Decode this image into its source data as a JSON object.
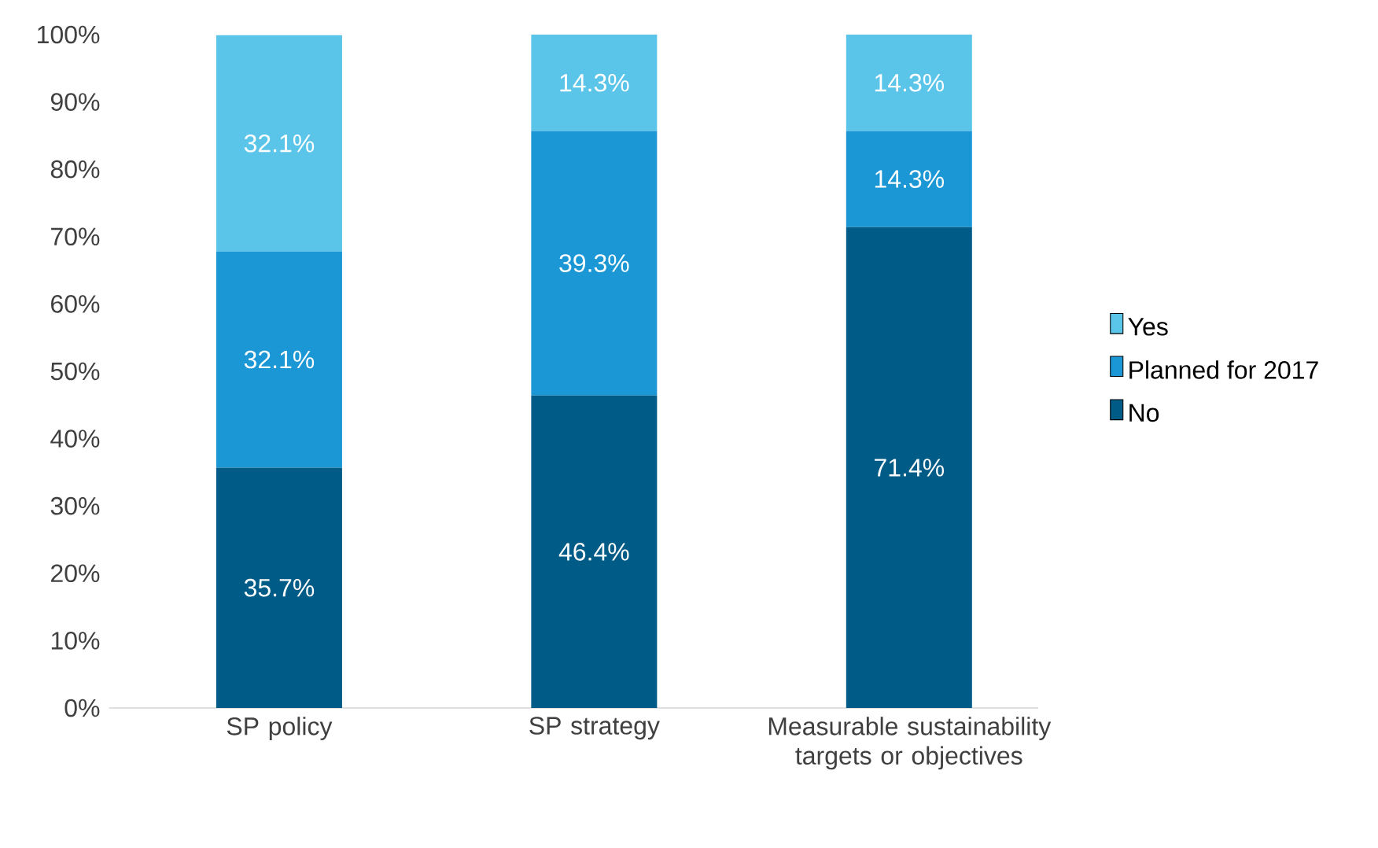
{
  "chart_data": {
    "type": "bar",
    "stacked": true,
    "categories": [
      "SP policy",
      "SP strategy",
      "Measurable sustainability targets or objectives"
    ],
    "series": [
      {
        "name": "No",
        "color": "#005b86",
        "values": [
          35.7,
          46.4,
          71.4
        ],
        "value_labels": [
          "35.7%",
          "46.4%",
          "71.4%"
        ]
      },
      {
        "name": "Planned for 2017",
        "color": "#1b97d5",
        "values": [
          32.1,
          39.3,
          14.3
        ],
        "value_labels": [
          "32.1%",
          "39.3%",
          "14.3%"
        ]
      },
      {
        "name": "Yes",
        "color": "#5bc5e9",
        "values": [
          32.1,
          14.3,
          14.3
        ],
        "value_labels": [
          "32.1%",
          "14.3%",
          "14.3%"
        ]
      }
    ],
    "ylim": [
      0,
      100
    ],
    "yticks": [
      {
        "value": 0,
        "label": "0%"
      },
      {
        "value": 10,
        "label": "10%"
      },
      {
        "value": 20,
        "label": "20%"
      },
      {
        "value": 30,
        "label": "30%"
      },
      {
        "value": 40,
        "label": "40%"
      },
      {
        "value": 50,
        "label": "50%"
      },
      {
        "value": 60,
        "label": "60%"
      },
      {
        "value": 70,
        "label": "70%"
      },
      {
        "value": 80,
        "label": "80%"
      },
      {
        "value": 90,
        "label": "90%"
      },
      {
        "value": 100,
        "label": "100%"
      }
    ],
    "grid": false,
    "legend": "right"
  }
}
